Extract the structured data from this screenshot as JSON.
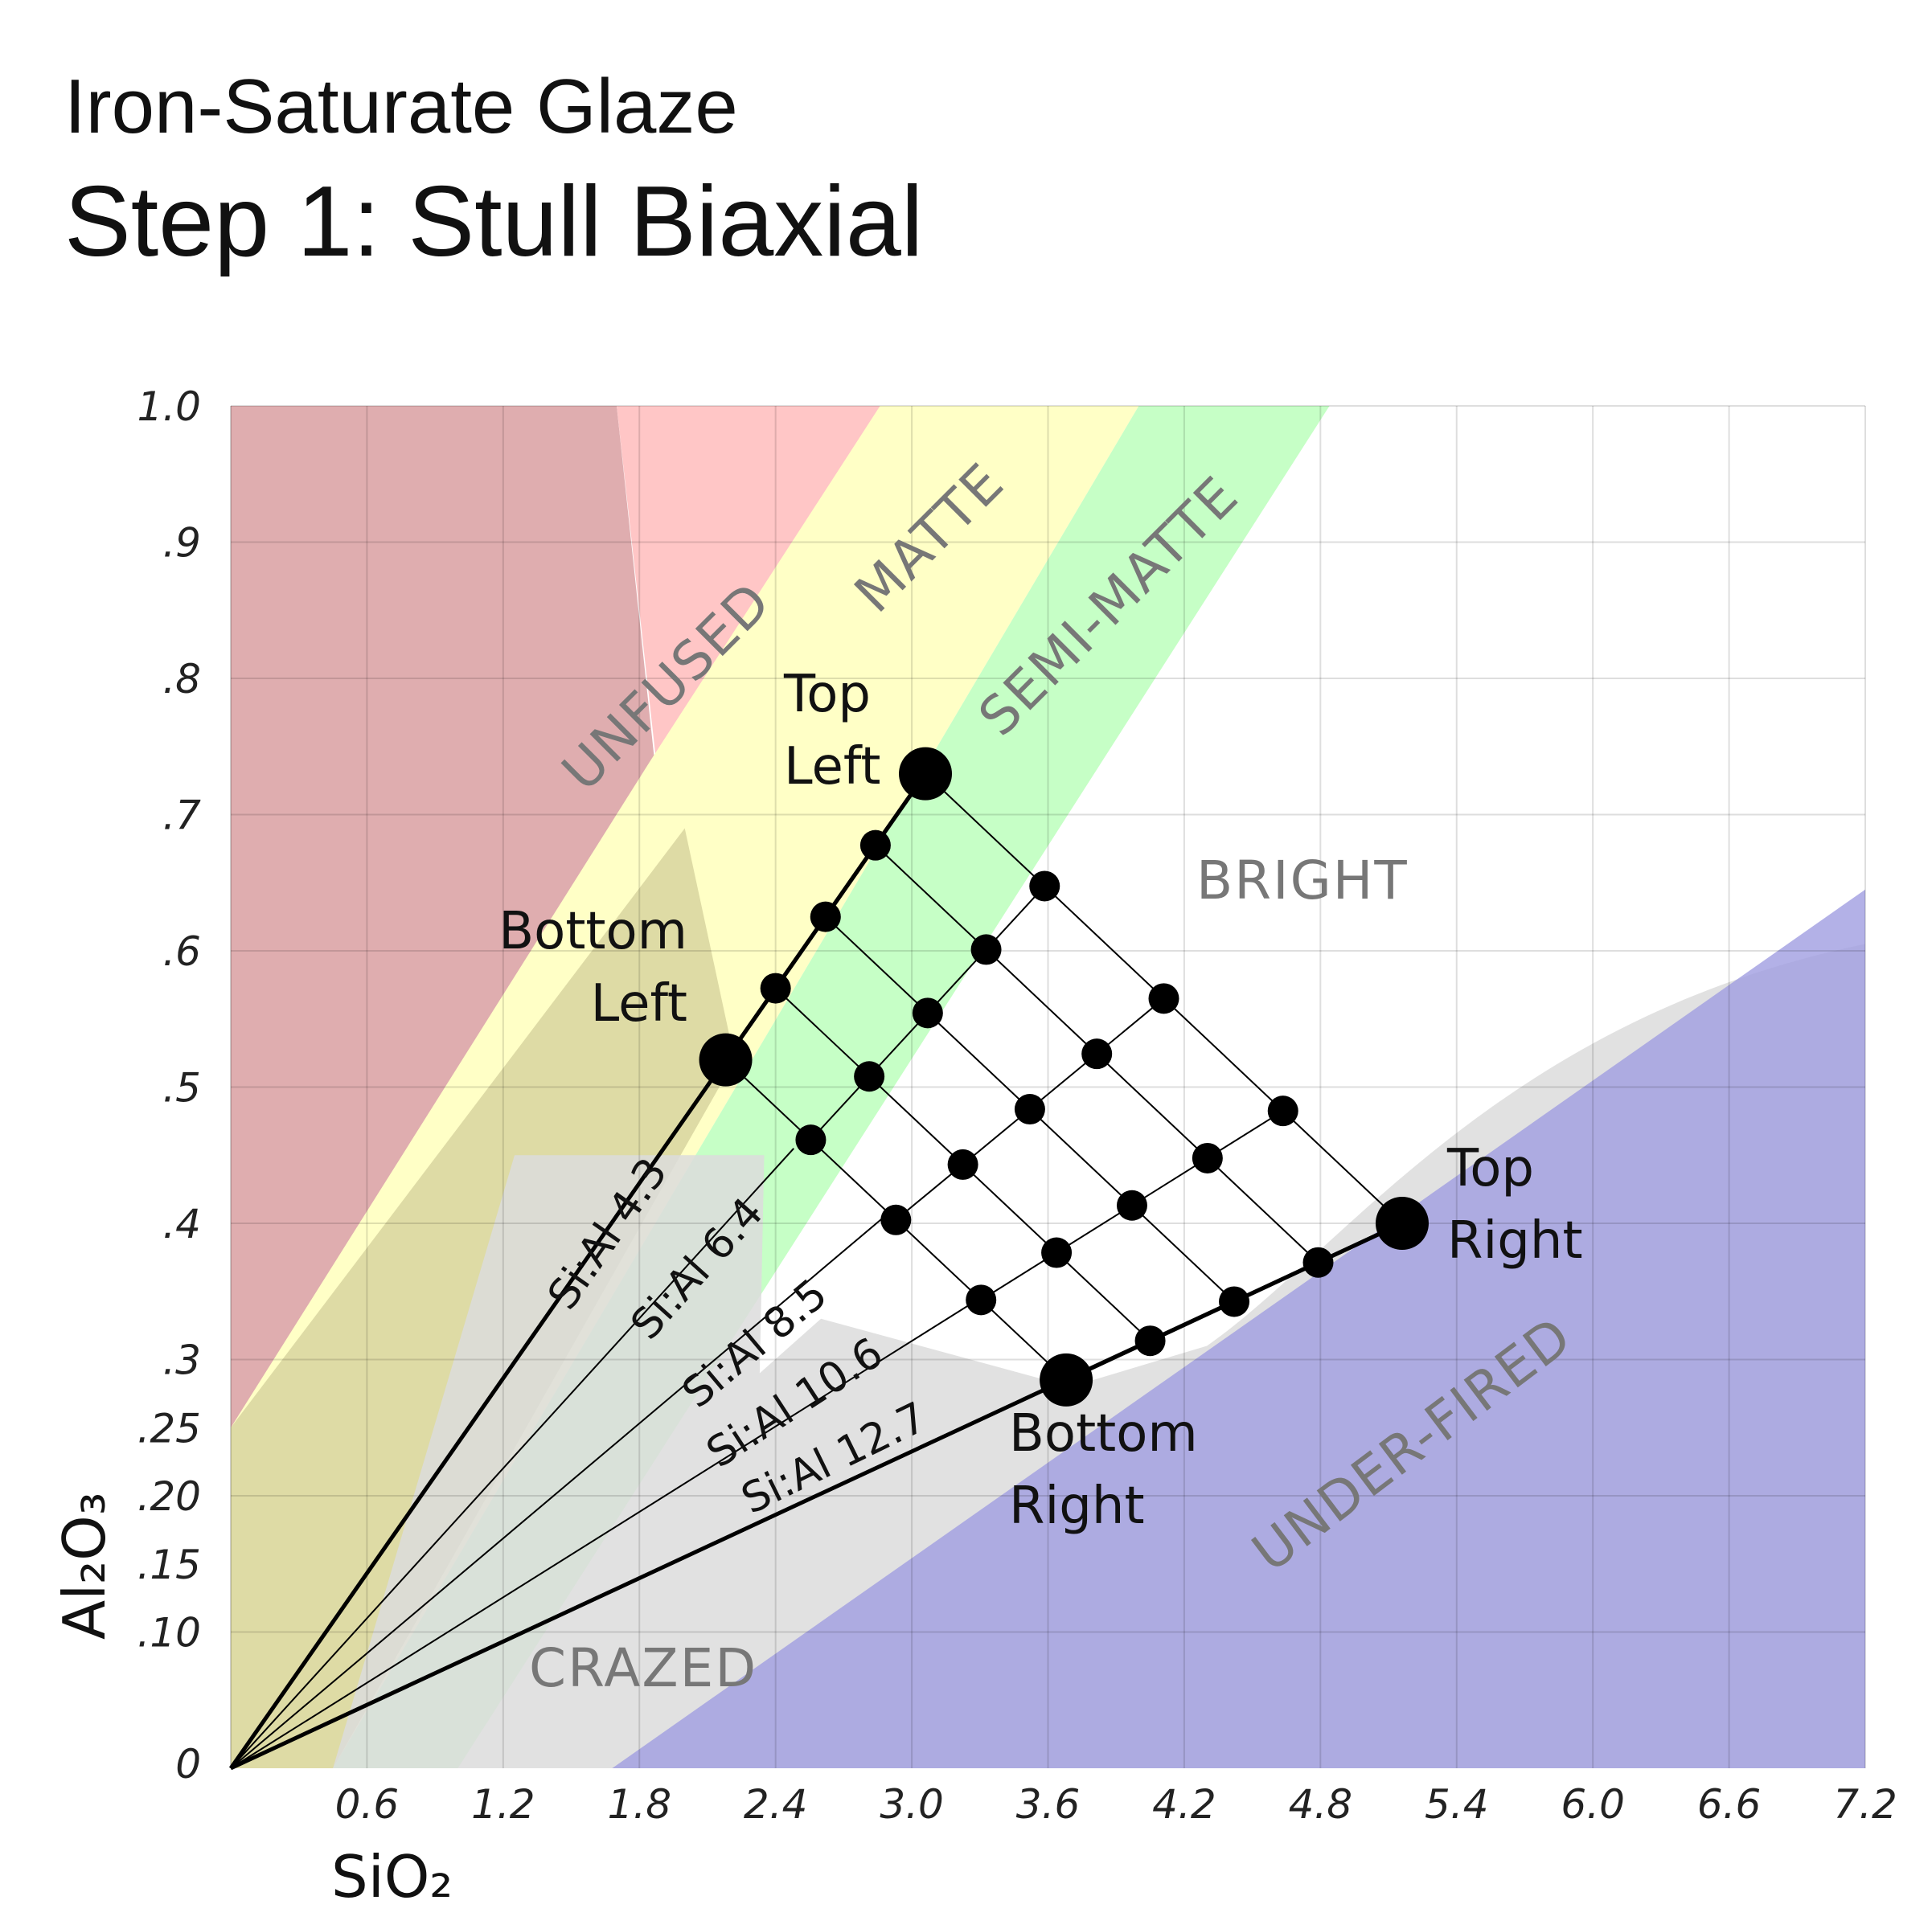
{
  "header": {
    "subtitle": "Iron-Saturate Glaze",
    "title": "Step 1: Stull Biaxial"
  },
  "chart_data": {
    "type": "scatter",
    "xlabel": "SiO₂",
    "ylabel": "Al₂O₃",
    "xlim": [
      0,
      7.2
    ],
    "ylim": [
      0,
      1.0
    ],
    "x_ticks": [
      {
        "v": 0.6,
        "label": "0.6"
      },
      {
        "v": 1.2,
        "label": "1.2"
      },
      {
        "v": 1.8,
        "label": "1.8"
      },
      {
        "v": 2.4,
        "label": "2.4"
      },
      {
        "v": 3.0,
        "label": "3.0"
      },
      {
        "v": 3.6,
        "label": "3.6"
      },
      {
        "v": 4.2,
        "label": "4.2"
      },
      {
        "v": 4.8,
        "label": "4.8"
      },
      {
        "v": 5.4,
        "label": "5.4"
      },
      {
        "v": 6.0,
        "label": "6.0"
      },
      {
        "v": 6.6,
        "label": "6.6"
      },
      {
        "v": 7.2,
        "label": "7.2"
      }
    ],
    "y_ticks": [
      {
        "v": 0,
        "label": "0"
      },
      {
        "v": 0.1,
        "label": ".10"
      },
      {
        "v": 0.15,
        "label": ".15"
      },
      {
        "v": 0.2,
        "label": ".20"
      },
      {
        "v": 0.25,
        "label": ".25"
      },
      {
        "v": 0.3,
        "label": ".3"
      },
      {
        "v": 0.4,
        "label": ".4"
      },
      {
        "v": 0.5,
        "label": ".5"
      },
      {
        "v": 0.6,
        "label": ".6"
      },
      {
        "v": 0.7,
        "label": ".7"
      },
      {
        "v": 0.8,
        "label": ".8"
      },
      {
        "v": 0.9,
        "label": ".9"
      },
      {
        "v": 1.0,
        "label": "1.0"
      }
    ],
    "grid": true,
    "regions": [
      {
        "label": "UNFUSED",
        "color": "#dfadaf"
      },
      {
        "label": "MATTE",
        "color": "#ffffc6"
      },
      {
        "label": "SEMI-MATTE",
        "color": "#c6ffc6"
      },
      {
        "label": "BRIGHT",
        "color": "#ffffff"
      },
      {
        "label": "CRAZED",
        "color": "#dedede"
      },
      {
        "label": "UNDER-FIRED",
        "color": "#b1afe1"
      }
    ],
    "ratio_lines": [
      {
        "label": "Si:Al 4.3",
        "ratio": 4.3
      },
      {
        "label": "Si:Al 6.4",
        "ratio": 6.4
      },
      {
        "label": "Si:Al 8.5",
        "ratio": 8.5
      },
      {
        "label": "Si:Al 10.6",
        "ratio": 10.6
      },
      {
        "label": "Si:Al 12.7",
        "ratio": 12.7
      }
    ],
    "corners": [
      {
        "label": [
          "Top",
          "Left"
        ],
        "x": 3.06,
        "y": 0.73
      },
      {
        "label": [
          "Bottom",
          "Left"
        ],
        "x": 2.18,
        "y": 0.52
      },
      {
        "label": [
          "Top",
          "Right"
        ],
        "x": 5.16,
        "y": 0.4
      },
      {
        "label": [
          "Bottom",
          "Right"
        ],
        "x": 3.68,
        "y": 0.285
      }
    ],
    "grid_size": 6
  }
}
